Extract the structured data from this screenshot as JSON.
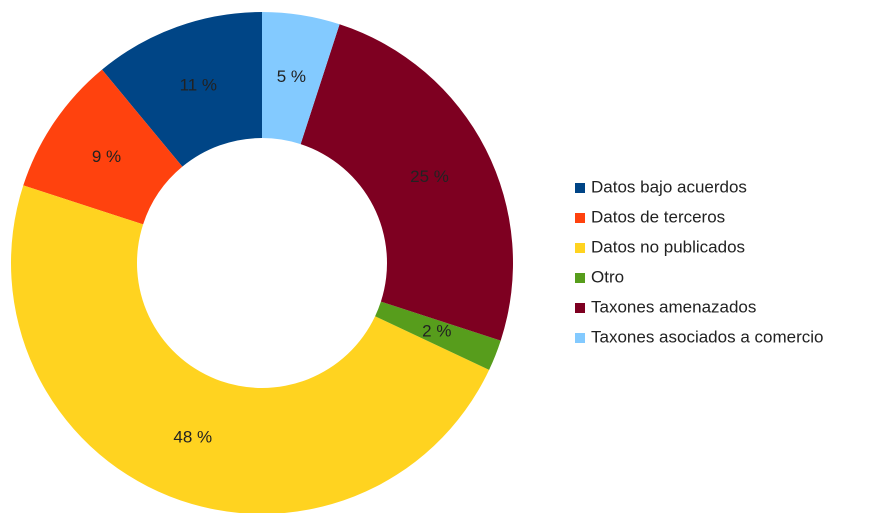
{
  "chart_data": {
    "type": "donut",
    "categories": [
      "Datos bajo acuerdos",
      "Datos de terceros",
      "Datos no publicados",
      "Otro",
      "Taxones amenazados",
      "Taxones asociados a comercio"
    ],
    "values": [
      11,
      9,
      48,
      2,
      25,
      5
    ],
    "value_labels": [
      "11 %",
      "9 %",
      "48 %",
      "2 %",
      "25 %",
      "5 %"
    ],
    "colors": [
      "#004586",
      "#ff420e",
      "#ffd320",
      "#579d1c",
      "#7e0021",
      "#83caff"
    ],
    "legend": "right"
  }
}
